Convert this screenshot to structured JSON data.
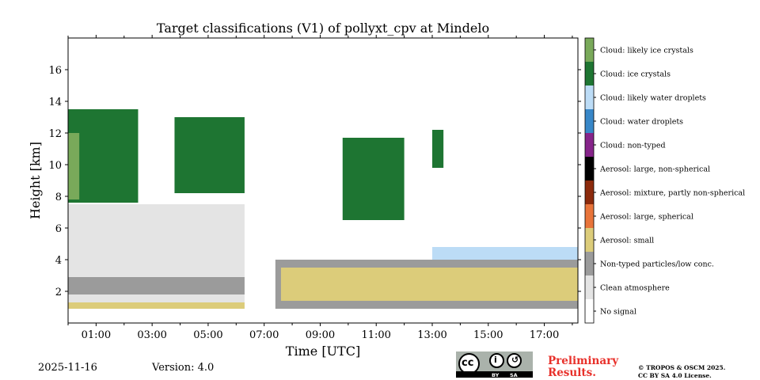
{
  "chart_data": {
    "type": "heatmap",
    "title": "Target classifications (V1) of pollyxt_cpv at Mindelo",
    "xlabel": "Time [UTC]",
    "ylabel": "Height [km]",
    "xlim": [
      0,
      18.2
    ],
    "ylim": [
      0,
      18
    ],
    "x_ticks": [
      1,
      3,
      5,
      7,
      9,
      11,
      13,
      15,
      17
    ],
    "x_tick_labels": [
      "01:00",
      "03:00",
      "05:00",
      "07:00",
      "09:00",
      "11:00",
      "13:00",
      "15:00",
      "17:00"
    ],
    "y_ticks": [
      2,
      4,
      6,
      8,
      10,
      12,
      14,
      16
    ],
    "y_tick_labels": [
      "2",
      "4",
      "6",
      "8",
      "10",
      "12",
      "14",
      "16"
    ],
    "classes": [
      {
        "label": "Cloud: likely ice crystals",
        "color": "#79a95a"
      },
      {
        "label": "Cloud: ice crystals",
        "color": "#1e7532"
      },
      {
        "label": "Cloud: likely water droplets",
        "color": "#bcdcf6"
      },
      {
        "label": "Cloud: water droplets",
        "color": "#3887c8"
      },
      {
        "label": "Cloud: non-typed",
        "color": "#86248a"
      },
      {
        "label": "Aerosol: large, non-spherical",
        "color": "#000000"
      },
      {
        "label": "Aerosol: mixture, partly non-spherical",
        "color": "#8c2a0c"
      },
      {
        "label": "Aerosol: large, spherical",
        "color": "#e8743a"
      },
      {
        "label": "Aerosol: small",
        "color": "#dccc7a"
      },
      {
        "label": "Non-typed particles/low conc.",
        "color": "#9b9b9b"
      },
      {
        "label": "Clean atmosphere",
        "color": "#e4e4e4"
      },
      {
        "label": "No signal",
        "color": "#ffffff"
      }
    ],
    "regions": [
      {
        "class": "Clean atmosphere",
        "t": [
          0,
          6.3
        ],
        "h": [
          1.0,
          7.5
        ]
      },
      {
        "class": "Non-typed particles/low conc.",
        "t": [
          0,
          6.3
        ],
        "h": [
          1.8,
          2.9
        ]
      },
      {
        "class": "Aerosol: small",
        "t": [
          0,
          6.3
        ],
        "h": [
          0.9,
          1.3
        ]
      },
      {
        "class": "Cloud: ice crystals",
        "t": [
          0,
          2.5
        ],
        "h": [
          7.6,
          13.5
        ]
      },
      {
        "class": "Cloud: likely ice crystals",
        "t": [
          0,
          0.4
        ],
        "h": [
          7.8,
          12.0
        ]
      },
      {
        "class": "Cloud: ice crystals",
        "t": [
          3.8,
          6.3
        ],
        "h": [
          8.2,
          13.0
        ]
      },
      {
        "class": "Cloud: ice crystals",
        "t": [
          9.8,
          12.0
        ],
        "h": [
          6.5,
          11.7
        ]
      },
      {
        "class": "Cloud: ice crystals",
        "t": [
          13.0,
          13.4
        ],
        "h": [
          9.8,
          12.2
        ]
      },
      {
        "class": "Non-typed particles/low conc.",
        "t": [
          7.4,
          18.2
        ],
        "h": [
          0.9,
          4.0
        ]
      },
      {
        "class": "Aerosol: small",
        "t": [
          7.6,
          18.2
        ],
        "h": [
          1.4,
          3.5
        ]
      },
      {
        "class": "Cloud: likely water droplets",
        "t": [
          13.0,
          18.2
        ],
        "h": [
          4.0,
          4.8
        ]
      }
    ]
  },
  "footer": {
    "date": "2025-11-16",
    "version": "Version: 4.0",
    "preliminary_line1": "Preliminary",
    "preliminary_line2": "Results.",
    "license_line1": "© TROPOS & OSCM 2025.",
    "license_line2": "CC BY SA 4.0 License.",
    "cc_by": "BY",
    "cc_sa": "SA"
  }
}
